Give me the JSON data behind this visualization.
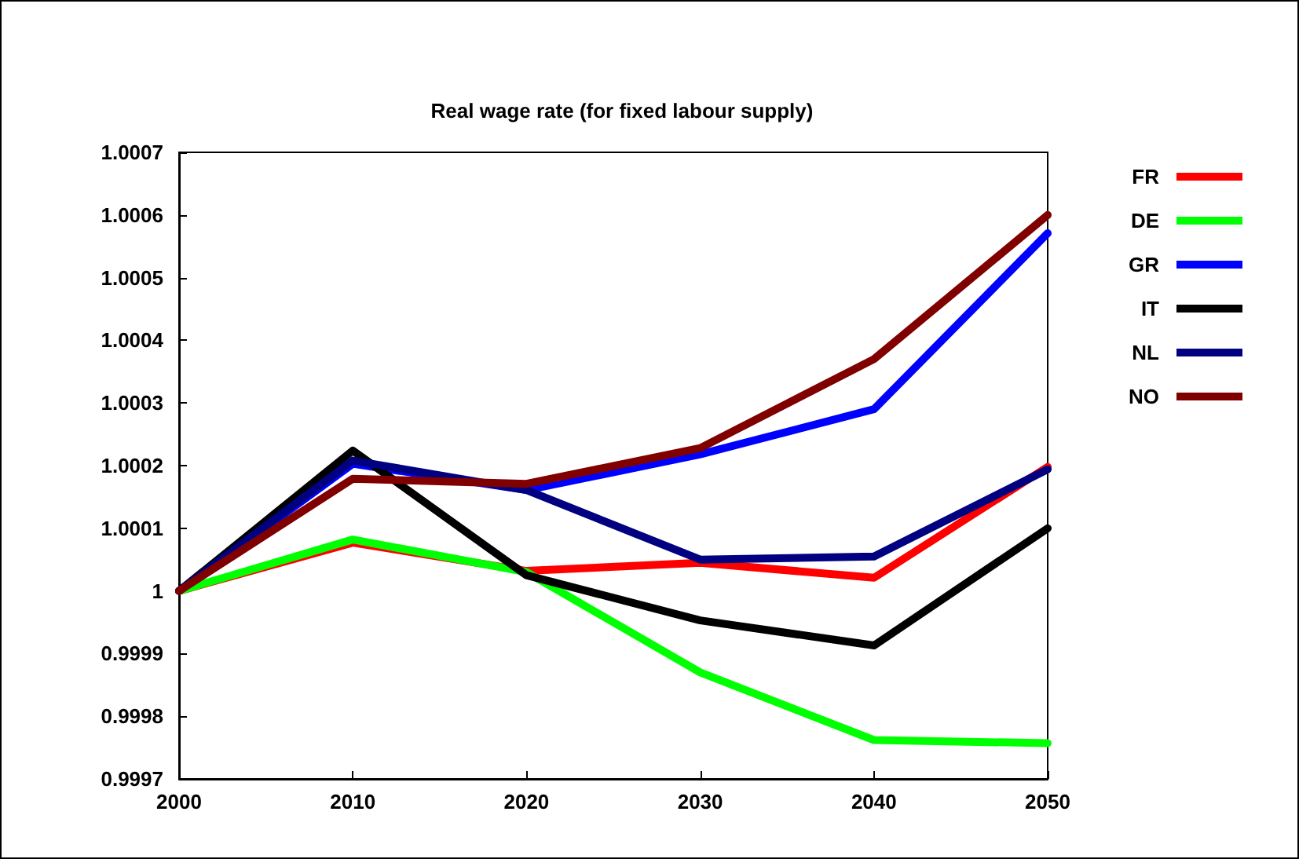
{
  "chart_data": {
    "type": "line",
    "title": "Real wage rate (for fixed labour supply)",
    "x": [
      2000,
      2010,
      2020,
      2030,
      2040,
      2050
    ],
    "series": [
      {
        "name": "FR",
        "color": "#ff0000",
        "values": [
          1.0,
          1.000077,
          1.000032,
          1.000045,
          1.000021,
          1.000198
        ]
      },
      {
        "name": "DE",
        "color": "#00ff00",
        "values": [
          1.0,
          1.000082,
          1.00003,
          0.99987,
          0.999762,
          0.999757
        ]
      },
      {
        "name": "GR",
        "color": "#0000ff",
        "values": [
          1.0,
          1.000203,
          1.000161,
          1.000218,
          1.00029,
          1.000571
        ]
      },
      {
        "name": "IT",
        "color": "#000000",
        "values": [
          1.0,
          1.000224,
          1.000025,
          0.999953,
          0.999913,
          1.0001
        ]
      },
      {
        "name": "NL",
        "color": "#000080",
        "values": [
          1.0,
          1.000208,
          1.000161,
          1.00005,
          1.000055,
          1.000194
        ]
      },
      {
        "name": "NO",
        "color": "#800000",
        "values": [
          1.0,
          1.000179,
          1.000171,
          1.000228,
          1.00037,
          1.0006
        ]
      }
    ],
    "xlim": [
      2000,
      2050
    ],
    "xticks": [
      2000,
      2010,
      2020,
      2030,
      2040,
      2050
    ],
    "ylim": [
      0.9997,
      1.0007
    ],
    "yticks": [
      0.9997,
      0.9998,
      0.9999,
      1,
      1.0001,
      1.0002,
      1.0003,
      1.0004,
      1.0005,
      1.0006,
      1.0007
    ],
    "grid": false,
    "legend": "right",
    "marker": "none",
    "line_style": "solid"
  }
}
